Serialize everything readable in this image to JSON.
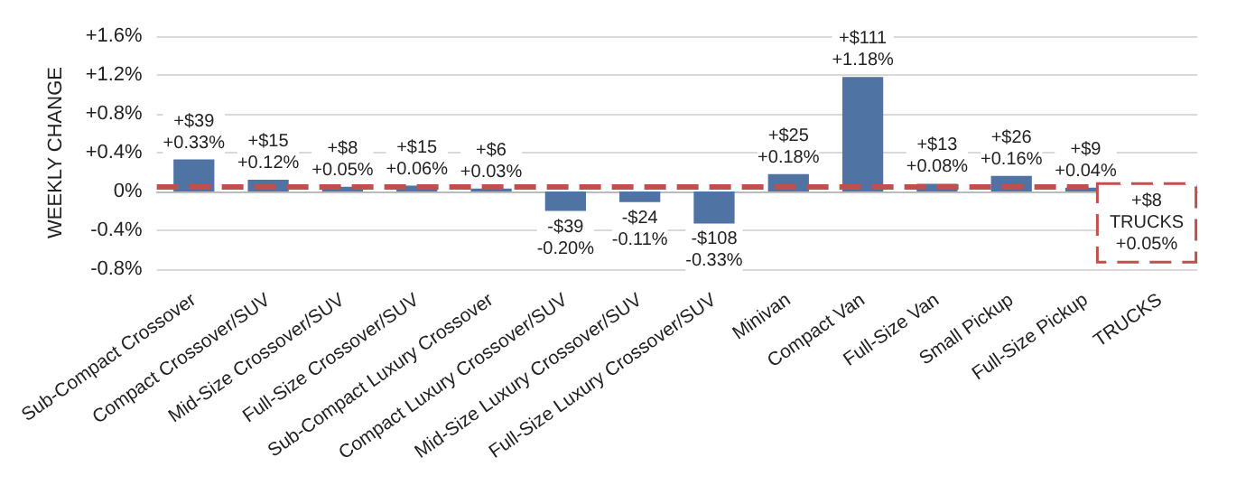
{
  "chart_data": {
    "type": "bar",
    "ylabel": "WEEKLY CHANGE",
    "categories": [
      "Sub-Compact Crossover",
      "Compact Crossover/SUV",
      "Mid-Size Crossover/SUV",
      "Full-Size Crossover/SUV",
      "Sub-Compact Luxury Crossover",
      "Compact Luxury Crossover/SUV",
      "Mid-Size Luxury Crossover/SUV",
      "Full-Size Luxury Crossover/SUV",
      "Minivan",
      "Compact Van",
      "Full-Size Van",
      "Small Pickup",
      "Full-Size Pickup",
      "TRUCKS"
    ],
    "series": [
      {
        "color": "#4f73a3",
        "values": [
          0.33,
          0.12,
          0.05,
          0.06,
          0.03,
          -0.2,
          -0.11,
          -0.33,
          0.18,
          1.18,
          0.08,
          0.16,
          0.04,
          null
        ],
        "value_labels": [
          "+$39\n+0.33%",
          "+$15\n+0.12%",
          "+$8\n+0.05%",
          "+$15\n+0.06%",
          "+$6\n+0.03%",
          "-$39\n-0.20%",
          "-$24\n-0.11%",
          "-$108\n-0.33%",
          "+$25\n+0.18%",
          "+$111\n+1.18%",
          "+$13\n+0.08%",
          "+$26\n+0.16%",
          "+$9\n+0.04%",
          null
        ]
      }
    ],
    "ylim": [
      -0.8,
      1.6
    ],
    "yticks": [
      {
        "value": -0.8,
        "label": "-0.8%"
      },
      {
        "value": -0.4,
        "label": "-0.4%"
      },
      {
        "value": 0,
        "label": "0%"
      },
      {
        "value": 0.4,
        "label": "+0.4%"
      },
      {
        "value": 0.8,
        "label": "+0.8%"
      },
      {
        "value": 1.2,
        "label": "+1.2%"
      },
      {
        "value": 1.6,
        "label": "+1.6%"
      }
    ],
    "grid": "y",
    "ref_lines": [
      {
        "axis": "y",
        "value": 0.05,
        "label": "+$8\nTRUCKS\n+0.05%",
        "color": "#c0504d",
        "line_style": "dashed"
      }
    ]
  }
}
